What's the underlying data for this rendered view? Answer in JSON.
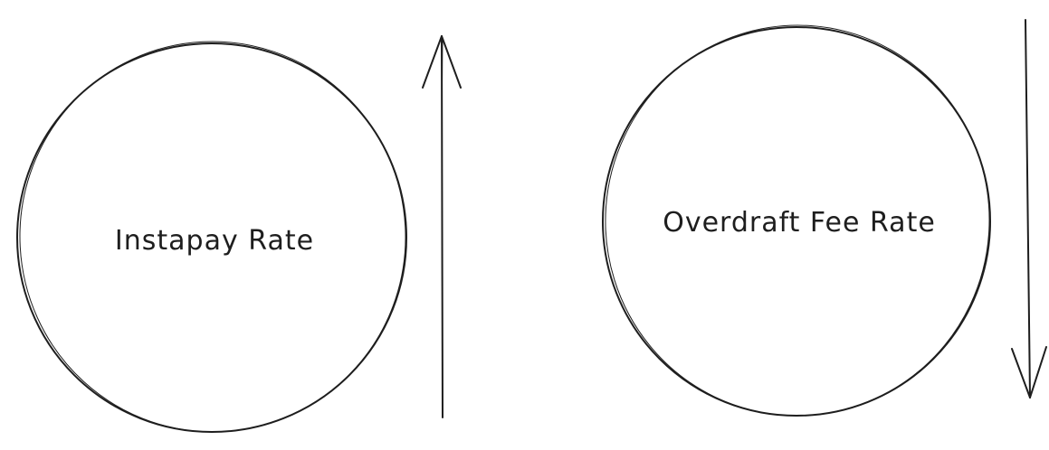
{
  "nodes": [
    {
      "id": "instapay",
      "label": "Instapay Rate",
      "trend": "up"
    },
    {
      "id": "overdraft",
      "label": "Overdraft Fee Rate",
      "trend": "down"
    }
  ],
  "colors": {
    "stroke": "#1e1e1e",
    "background": "#ffffff"
  }
}
